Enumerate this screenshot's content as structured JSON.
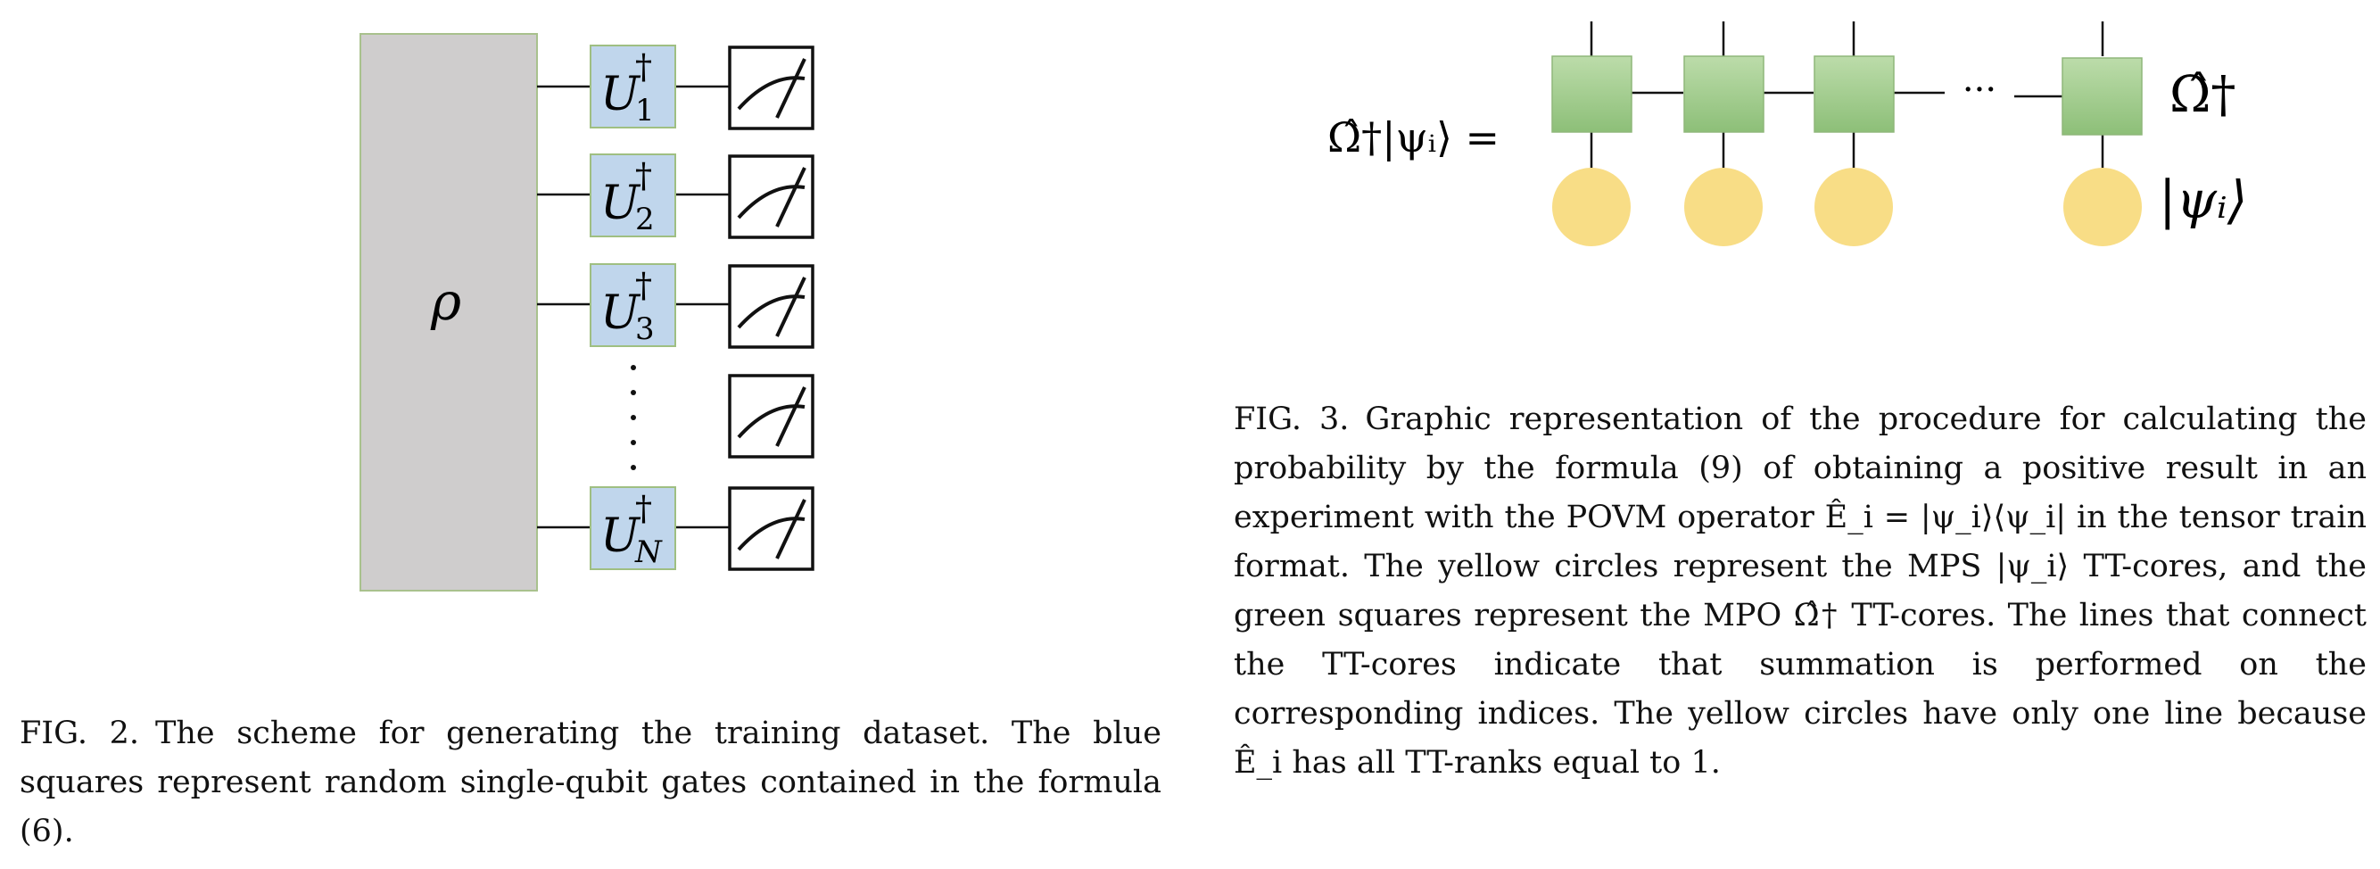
{
  "fig2": {
    "rho_label": "ρ",
    "gates": [
      {
        "op": "U",
        "dagger": "†",
        "sub": "1"
      },
      {
        "op": "U",
        "dagger": "†",
        "sub": "2"
      },
      {
        "op": "U",
        "dagger": "†",
        "sub": "3"
      },
      {
        "op": "U",
        "dagger": "†",
        "sub": "N"
      }
    ],
    "caption_label": "FIG. 2.",
    "caption_text": "The scheme for generating the training dataset. The blue squares represent random single-qubit gates contained in the formula (6).",
    "colors": {
      "rho_fill": "#cfcdcd",
      "rho_stroke": "#a9c18d",
      "gate_fill": "#c0d6ec",
      "gate_stroke": "#9fbf82"
    }
  },
  "fig3": {
    "equation_lhs": "Ω̂†|ψᵢ⟩ =",
    "mpo_label": "Ω̂†",
    "mps_label": "|ψᵢ⟩",
    "ellipsis": "···",
    "caption_label": "FIG. 3.",
    "caption_text": "Graphic representation of the procedure for calculating the probability by the formula (9) of obtaining a positive result in an experiment with the POVM operator Ê_i = |ψ_i⟩⟨ψ_i| in the tensor train format. The yellow circles represent the MPS |ψ_i⟩ TT-cores, and the green squares represent the MPO Ω̂† TT-cores. The lines that connect the TT-cores indicate that summation is performed on the corresponding indices. The yellow circles have only one line because Ê_i has all TT-ranks equal to 1.",
    "colors": {
      "mpo_fill_top": "#b7d8a3",
      "mpo_fill_bottom": "#8fc07a",
      "mps_fill": "#f8dd86"
    }
  }
}
